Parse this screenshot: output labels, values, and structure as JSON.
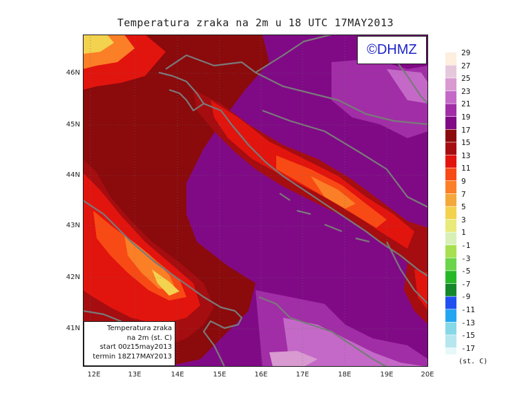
{
  "title": "Temperatura zraka na 2m u 18 UTC 17MAY2013",
  "copyright": "©DHMZ",
  "info_box": {
    "line1": "Temperatura zraka",
    "line2": "na 2m (st. C)",
    "line3": "start 00z15may2013",
    "line4": "termin 18Z17MAY2013"
  },
  "lat_labels": [
    "46N",
    "45N",
    "44N",
    "43N",
    "42N",
    "41N"
  ],
  "lon_labels": [
    "12E",
    "13E",
    "14E",
    "15E",
    "16E",
    "17E",
    "18E",
    "19E",
    "20E"
  ],
  "legend": {
    "unit": "(st. C)",
    "labels": [
      "29",
      "27",
      "25",
      "23",
      "21",
      "19",
      "17",
      "15",
      "13",
      "11",
      "9",
      "7",
      "5",
      "3",
      "1",
      "-1",
      "-3",
      "-5",
      "-7",
      "-9",
      "-11",
      "-13",
      "-15",
      "-17"
    ],
    "colors": [
      "#fdeedd",
      "#e6c8dc",
      "#d89ad0",
      "#c469c8",
      "#a12ea6",
      "#800a86",
      "#8b0a0c",
      "#a50d10",
      "#e2140e",
      "#f84a15",
      "#fb7f26",
      "#f4a73a",
      "#f2d24e",
      "#e8ea7a",
      "#d8f0b8",
      "#a6e050",
      "#6ad44a",
      "#27b82a",
      "#14872a",
      "#2050f0",
      "#22a6f2",
      "#86d8e6",
      "#b6e6ee",
      "#e6f8f8"
    ]
  }
}
